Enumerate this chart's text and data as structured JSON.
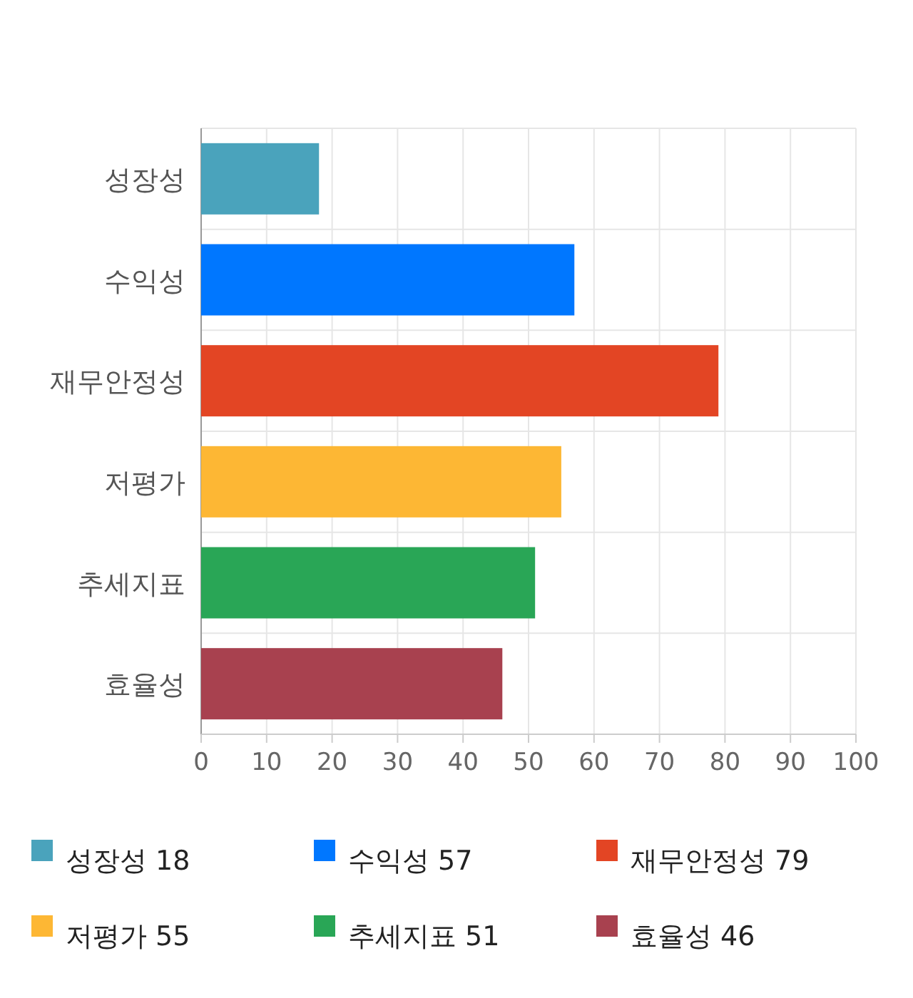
{
  "chart_data": {
    "type": "bar",
    "orientation": "horizontal",
    "stacked": true,
    "categories": [
      "성장성",
      "수익성",
      "재무안정성",
      "저평가",
      "추세지표",
      "효율성"
    ],
    "series": [
      {
        "name": "성장성",
        "color": "#4aa3bc",
        "values": [
          18,
          null,
          null,
          null,
          null,
          null
        ]
      },
      {
        "name": "수익성",
        "color": "#0077ff",
        "values": [
          null,
          57,
          null,
          null,
          null,
          null
        ]
      },
      {
        "name": "재무안정성",
        "color": "#e34524",
        "values": [
          null,
          null,
          79,
          null,
          null,
          null
        ]
      },
      {
        "name": "저평가",
        "color": "#fdb734",
        "values": [
          null,
          null,
          null,
          55,
          null,
          null
        ]
      },
      {
        "name": "추세지표",
        "color": "#29a656",
        "values": [
          null,
          null,
          null,
          null,
          51,
          null
        ]
      },
      {
        "name": "효율성",
        "color": "#a8414f",
        "values": [
          null,
          null,
          null,
          null,
          null,
          46
        ]
      }
    ],
    "annotations": [
      "18",
      "57",
      "79",
      "55",
      "51",
      "46"
    ],
    "xlim": [
      0,
      100
    ],
    "xticks": [
      0,
      10,
      20,
      30,
      40,
      50,
      60,
      70,
      80,
      90,
      100
    ],
    "grid": true,
    "legend": "bottom"
  }
}
